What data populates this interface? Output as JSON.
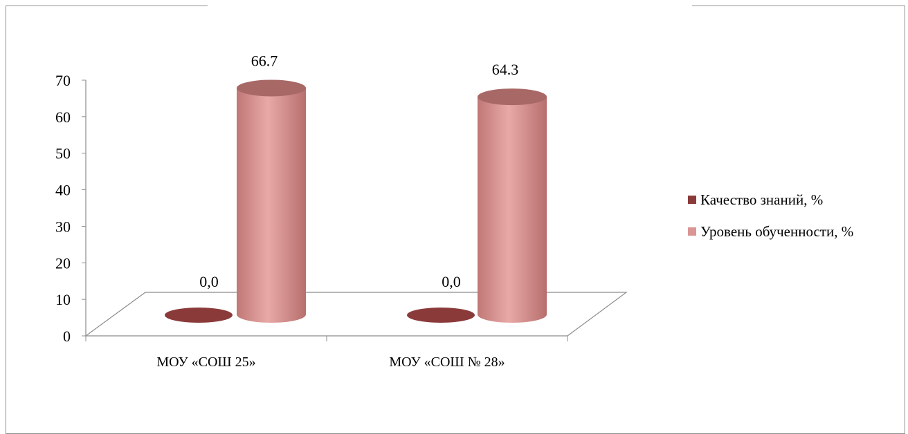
{
  "chart_data": {
    "type": "bar",
    "style": "3d-cylinder",
    "categories": [
      "МОУ «СОШ 25»",
      "МОУ «СОШ № 28»"
    ],
    "series": [
      {
        "name": "Качество знаний, %",
        "values": [
          0,
          0
        ],
        "labels": [
          "0,0",
          "0,0"
        ],
        "color": "#8b3a3a"
      },
      {
        "name": "Уровень обученности, %",
        "values": [
          66.7,
          64.3
        ],
        "labels": [
          "66.7",
          "64.3"
        ],
        "color": "#d99694"
      }
    ],
    "ylim": [
      0,
      70
    ],
    "yticks": [
      "0",
      "10",
      "20",
      "30",
      "40",
      "50",
      "60",
      "70"
    ],
    "legend_position": "right",
    "grid": false
  }
}
